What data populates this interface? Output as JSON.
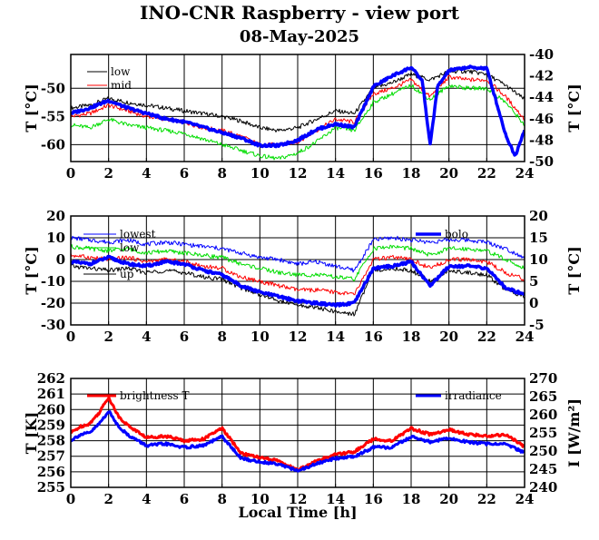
{
  "title": "INO-CNR Raspberry - view port",
  "subtitle": "08-May-2025",
  "xlabel": "Local Time [h]",
  "colors": {
    "black": "#000000",
    "red": "#ff0000",
    "green": "#00dd00",
    "blue": "#0000ff"
  },
  "chart_data": [
    {
      "type": "line",
      "xlim": [
        0,
        24
      ],
      "xticks": [
        0,
        2,
        4,
        6,
        8,
        10,
        12,
        14,
        16,
        18,
        20,
        22,
        24
      ],
      "ylabel": "T [°C]",
      "ylim": [
        -63,
        -44
      ],
      "yticks": [
        -50,
        -55,
        -60
      ],
      "y2label": "T [°C]",
      "y2lim": [
        -50,
        -40
      ],
      "y2ticks": [
        -40,
        -42,
        -44,
        -46,
        -48,
        -50
      ],
      "grid": true,
      "legend": "top-left / top-right",
      "series": [
        {
          "name": "low",
          "axis": "left",
          "color": "#000000",
          "width": 1,
          "x": [
            0,
            1,
            2,
            3,
            4,
            5,
            6,
            7,
            8,
            9,
            10,
            11,
            12,
            13,
            14,
            15,
            16,
            17,
            18,
            19,
            20,
            21,
            22,
            23,
            24
          ],
          "values": [
            -53.5,
            -53.0,
            -51.8,
            -52.5,
            -53.0,
            -53.5,
            -54.0,
            -54.5,
            -55.0,
            -55.8,
            -57.0,
            -57.5,
            -57.0,
            -55.5,
            -54.0,
            -54.5,
            -50.0,
            -49.0,
            -47.5,
            -48.5,
            -47.0,
            -47.0,
            -47.5,
            -49.5,
            -52.0
          ]
        },
        {
          "name": "mid",
          "axis": "left",
          "color": "#ff0000",
          "width": 1,
          "x": [
            0,
            1,
            2,
            3,
            4,
            5,
            6,
            7,
            8,
            9,
            10,
            11,
            12,
            13,
            14,
            15,
            16,
            17,
            18,
            19,
            20,
            21,
            22,
            23,
            24
          ],
          "values": [
            -55.0,
            -54.5,
            -53.0,
            -54.0,
            -55.0,
            -55.5,
            -56.0,
            -57.0,
            -57.5,
            -58.5,
            -60.0,
            -60.0,
            -59.5,
            -57.5,
            -55.5,
            -56.0,
            -51.0,
            -50.0,
            -48.5,
            -51.5,
            -48.0,
            -48.5,
            -48.5,
            -51.5,
            -55.5
          ]
        },
        {
          "name": "",
          "axis": "left",
          "color": "#00dd00",
          "width": 1,
          "x": [
            0,
            1,
            2,
            3,
            4,
            5,
            6,
            7,
            8,
            9,
            10,
            11,
            12,
            13,
            14,
            15,
            16,
            17,
            18,
            19,
            20,
            21,
            22,
            23,
            24
          ],
          "values": [
            -56.5,
            -57.0,
            -55.5,
            -56.5,
            -57.0,
            -57.5,
            -58.0,
            -59.0,
            -60.0,
            -61.0,
            -62.0,
            -62.5,
            -61.5,
            -59.5,
            -57.0,
            -57.5,
            -52.5,
            -51.0,
            -49.5,
            -52.0,
            -49.5,
            -50.0,
            -50.0,
            -52.5,
            -56.5
          ]
        },
        {
          "name": "",
          "axis": "right",
          "color": "#0000ff",
          "width": 3.5,
          "x": [
            0,
            1,
            2,
            3,
            4,
            5,
            6,
            7,
            8,
            9,
            10,
            11,
            12,
            13,
            14,
            15,
            16,
            17,
            18,
            18.6,
            19,
            19.4,
            20,
            21,
            22,
            23,
            23.5,
            24
          ],
          "values": [
            -45.5,
            -45.0,
            -44.3,
            -45.0,
            -45.5,
            -46.0,
            -46.3,
            -46.8,
            -47.3,
            -47.8,
            -48.5,
            -48.5,
            -48.0,
            -47.0,
            -46.5,
            -46.8,
            -43.0,
            -42.0,
            -41.2,
            -42.5,
            -48.5,
            -43.0,
            -41.5,
            -41.2,
            -41.3,
            -47.5,
            -49.5,
            -47.0
          ]
        }
      ]
    },
    {
      "type": "line",
      "xlim": [
        0,
        24
      ],
      "xticks": [
        0,
        2,
        4,
        6,
        8,
        10,
        12,
        14,
        16,
        18,
        20,
        22,
        24
      ],
      "ylabel": "T [°C]",
      "ylim": [
        -30,
        20
      ],
      "yticks": [
        20,
        10,
        0,
        -10,
        -20,
        -30
      ],
      "y2label": "T [°C]",
      "y2lim": [
        -5,
        20
      ],
      "y2ticks": [
        20,
        15,
        10,
        5,
        0,
        -5
      ],
      "grid": true,
      "legend": "top-left / top-right",
      "series": [
        {
          "name": "lowest",
          "axis": "left",
          "color": "#0000ff",
          "width": 1,
          "x": [
            0,
            1,
            2,
            3,
            4,
            5,
            6,
            7,
            8,
            9,
            10,
            11,
            12,
            13,
            14,
            15,
            16,
            17,
            18,
            19,
            20,
            21,
            22,
            23,
            24
          ],
          "values": [
            10,
            9,
            8,
            9,
            7,
            8,
            7,
            6,
            5,
            3,
            1,
            0,
            -2,
            -1,
            -3,
            -5,
            9,
            10,
            9,
            8,
            9,
            9,
            8,
            5,
            1
          ]
        },
        {
          "name": "low",
          "axis": "left",
          "color": "#00dd00",
          "width": 1,
          "x": [
            0,
            1,
            2,
            3,
            4,
            5,
            6,
            7,
            8,
            9,
            10,
            11,
            12,
            13,
            14,
            15,
            16,
            17,
            18,
            19,
            20,
            21,
            22,
            23,
            24
          ],
          "values": [
            6,
            5,
            4,
            5,
            3,
            4,
            3,
            2,
            1,
            -2,
            -4,
            -6,
            -7,
            -7,
            -8,
            -9,
            5,
            6,
            5,
            2,
            5,
            5,
            4,
            0,
            -4
          ]
        },
        {
          "name": "",
          "axis": "left",
          "color": "#ff0000",
          "width": 1,
          "x": [
            0,
            1,
            2,
            3,
            4,
            5,
            6,
            7,
            8,
            9,
            10,
            11,
            12,
            13,
            14,
            15,
            16,
            17,
            18,
            19,
            20,
            21,
            22,
            23,
            24
          ],
          "values": [
            2,
            1,
            0,
            1,
            -1,
            0,
            -1,
            -3,
            -4,
            -8,
            -10,
            -12,
            -14,
            -14,
            -15,
            -16,
            0,
            1,
            0,
            -4,
            0,
            0,
            -1,
            -6,
            -9
          ]
        },
        {
          "name": "up",
          "axis": "left",
          "color": "#000000",
          "width": 1,
          "x": [
            0,
            1,
            2,
            3,
            4,
            5,
            6,
            7,
            8,
            9,
            10,
            11,
            12,
            13,
            14,
            15,
            16,
            17,
            18,
            19,
            20,
            21,
            22,
            23,
            24
          ],
          "values": [
            -3,
            -4,
            -5,
            -4,
            -6,
            -5,
            -6,
            -8,
            -9,
            -13,
            -16,
            -19,
            -21,
            -22,
            -24,
            -25,
            -5,
            -4,
            -5,
            -10,
            -5,
            -6,
            -7,
            -14,
            -17
          ]
        },
        {
          "name": "bolo",
          "axis": "right",
          "color": "#0000ff",
          "width": 3.5,
          "x": [
            0,
            1,
            2,
            3,
            4,
            5,
            6,
            7,
            8,
            9,
            10,
            11,
            12,
            13,
            14,
            15,
            16,
            17,
            18,
            19,
            20,
            21,
            22,
            23,
            24
          ],
          "values": [
            9.5,
            9,
            10.5,
            9,
            8.5,
            9.5,
            9,
            7.5,
            6.5,
            4,
            2.5,
            1.5,
            0.5,
            0,
            -0.5,
            0,
            8,
            8.5,
            9.5,
            4,
            8.5,
            8.5,
            8,
            3.5,
            2
          ]
        }
      ]
    },
    {
      "type": "line",
      "xlim": [
        0,
        24
      ],
      "xticks": [
        0,
        2,
        4,
        6,
        8,
        10,
        12,
        14,
        16,
        18,
        20,
        22,
        24
      ],
      "ylabel": "T [K]",
      "ylim": [
        255,
        262
      ],
      "yticks": [
        262,
        261,
        260,
        259,
        258,
        257,
        256,
        255
      ],
      "y2label": "I [W/m²]",
      "y2lim": [
        240,
        270
      ],
      "y2ticks": [
        270,
        265,
        260,
        255,
        250,
        245,
        240
      ],
      "grid": true,
      "legend": "top-left / top-right",
      "series": [
        {
          "name": "brightness T",
          "axis": "left",
          "color": "#ff0000",
          "width": 3,
          "x": [
            0,
            0.5,
            1,
            1.5,
            2,
            2.5,
            3,
            4,
            5,
            6,
            7,
            8,
            9,
            10,
            11,
            12,
            13,
            14,
            15,
            16,
            17,
            18,
            19,
            20,
            21,
            22,
            23,
            24
          ],
          "values": [
            258.5,
            258.9,
            259.1,
            259.8,
            260.8,
            259.6,
            259.0,
            258.2,
            258.3,
            258.0,
            258.1,
            258.8,
            257.2,
            256.9,
            256.7,
            256.1,
            256.7,
            257.1,
            257.3,
            258.1,
            258.0,
            258.8,
            258.4,
            258.7,
            258.4,
            258.3,
            258.4,
            257.6
          ]
        },
        {
          "name": "irradiance",
          "axis": "right",
          "color": "#0000ff",
          "width": 3,
          "x": [
            0,
            0.5,
            1,
            1.5,
            2,
            2.5,
            3,
            4,
            5,
            6,
            7,
            8,
            9,
            10,
            11,
            12,
            13,
            14,
            15,
            16,
            17,
            18,
            19,
            20,
            21,
            22,
            23,
            24
          ],
          "values": [
            253.0,
            254.5,
            255.0,
            257.5,
            261.0,
            257.0,
            254.5,
            251.5,
            252.0,
            251.0,
            251.5,
            254.0,
            248.0,
            247.0,
            246.5,
            244.5,
            246.5,
            248.0,
            248.5,
            251.0,
            251.0,
            254.0,
            252.5,
            253.5,
            252.5,
            252.0,
            252.0,
            249.5
          ]
        }
      ]
    }
  ]
}
